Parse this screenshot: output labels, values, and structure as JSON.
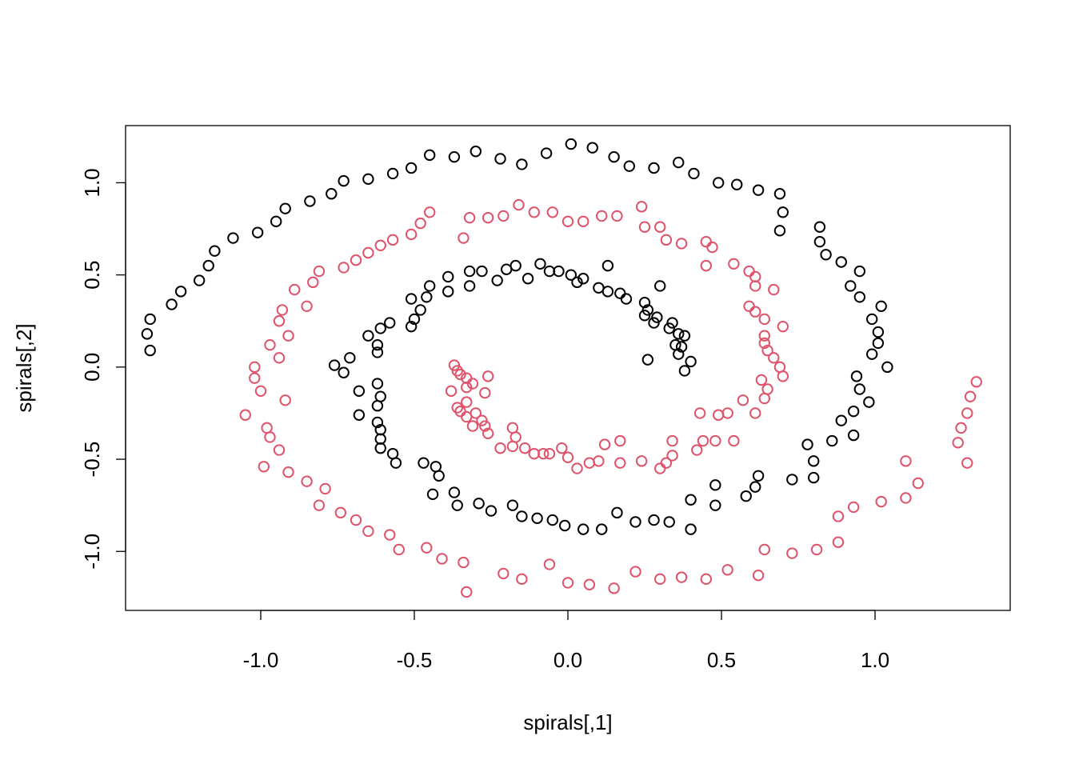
{
  "chart_data": {
    "type": "scatter",
    "xlabel": "spirals[,1]",
    "ylabel": "spirals[,2]",
    "xlim": [
      -1.44,
      1.44
    ],
    "ylim": [
      -1.32,
      1.31
    ],
    "xticks": [
      -1.0,
      -0.5,
      0.0,
      0.5,
      1.0
    ],
    "xtick_labels": [
      "-1.0",
      "-0.5",
      "0.0",
      "0.5",
      "1.0"
    ],
    "yticks": [
      -1.0,
      -0.5,
      0.0,
      0.5,
      1.0
    ],
    "ytick_labels": [
      "-1.0",
      "-0.5",
      "0.0",
      "0.5",
      "1.0"
    ],
    "grid": false,
    "marker": "open-circle",
    "series": [
      {
        "color": "#000000",
        "points": [
          [
            -1.36,
            0.09
          ],
          [
            -1.37,
            0.18
          ],
          [
            -1.36,
            0.26
          ],
          [
            -1.29,
            0.34
          ],
          [
            -1.26,
            0.41
          ],
          [
            -1.2,
            0.47
          ],
          [
            -1.17,
            0.55
          ],
          [
            -1.15,
            0.63
          ],
          [
            -1.09,
            0.7
          ],
          [
            -1.01,
            0.73
          ],
          [
            -0.95,
            0.79
          ],
          [
            -0.92,
            0.86
          ],
          [
            -0.84,
            0.9
          ],
          [
            -0.77,
            0.94
          ],
          [
            -0.73,
            1.01
          ],
          [
            -0.65,
            1.02
          ],
          [
            -0.57,
            1.05
          ],
          [
            -0.51,
            1.08
          ],
          [
            -0.45,
            1.15
          ],
          [
            -0.37,
            1.14
          ],
          [
            -0.3,
            1.17
          ],
          [
            -0.22,
            1.13
          ],
          [
            -0.15,
            1.1
          ],
          [
            -0.07,
            1.16
          ],
          [
            0.01,
            1.21
          ],
          [
            0.08,
            1.19
          ],
          [
            0.15,
            1.14
          ],
          [
            0.2,
            1.09
          ],
          [
            0.28,
            1.08
          ],
          [
            0.36,
            1.11
          ],
          [
            0.41,
            1.05
          ],
          [
            0.49,
            1.0
          ],
          [
            0.55,
            0.99
          ],
          [
            0.62,
            0.96
          ],
          [
            0.69,
            0.94
          ],
          [
            0.7,
            0.84
          ],
          [
            0.69,
            0.74
          ],
          [
            0.82,
            0.76
          ],
          [
            0.82,
            0.68
          ],
          [
            0.84,
            0.61
          ],
          [
            0.89,
            0.57
          ],
          [
            0.95,
            0.52
          ],
          [
            0.92,
            0.44
          ],
          [
            0.95,
            0.38
          ],
          [
            1.02,
            0.33
          ],
          [
            0.99,
            0.26
          ],
          [
            1.01,
            0.19
          ],
          [
            1.01,
            0.13
          ],
          [
            0.99,
            0.07
          ],
          [
            1.04,
            0.0
          ],
          [
            0.94,
            -0.05
          ],
          [
            0.95,
            -0.12
          ],
          [
            0.98,
            -0.19
          ],
          [
            0.93,
            -0.24
          ],
          [
            0.89,
            -0.29
          ],
          [
            0.93,
            -0.37
          ],
          [
            0.86,
            -0.4
          ],
          [
            0.78,
            -0.42
          ],
          [
            0.8,
            -0.51
          ],
          [
            0.8,
            -0.6
          ],
          [
            0.73,
            -0.61
          ],
          [
            0.62,
            -0.59
          ],
          [
            0.61,
            -0.65
          ],
          [
            0.58,
            -0.7
          ],
          [
            0.48,
            -0.64
          ],
          [
            0.48,
            -0.75
          ],
          [
            0.4,
            -0.72
          ],
          [
            0.4,
            -0.88
          ],
          [
            0.33,
            -0.84
          ],
          [
            0.28,
            -0.83
          ],
          [
            0.22,
            -0.84
          ],
          [
            0.16,
            -0.79
          ],
          [
            0.11,
            -0.88
          ],
          [
            0.05,
            -0.88
          ],
          [
            -0.01,
            -0.86
          ],
          [
            -0.05,
            -0.83
          ],
          [
            -0.1,
            -0.82
          ],
          [
            -0.15,
            -0.81
          ],
          [
            -0.18,
            -0.75
          ],
          [
            -0.25,
            -0.78
          ],
          [
            -0.29,
            -0.74
          ],
          [
            -0.36,
            -0.75
          ],
          [
            -0.37,
            -0.68
          ],
          [
            -0.44,
            -0.69
          ],
          [
            -0.42,
            -0.59
          ],
          [
            -0.43,
            -0.54
          ],
          [
            -0.47,
            -0.52
          ],
          [
            -0.56,
            -0.52
          ],
          [
            -0.57,
            -0.47
          ],
          [
            -0.61,
            -0.44
          ],
          [
            -0.61,
            -0.39
          ],
          [
            -0.61,
            -0.34
          ],
          [
            -0.62,
            -0.3
          ],
          [
            -0.62,
            -0.21
          ],
          [
            -0.61,
            -0.16
          ],
          [
            -0.62,
            -0.09
          ],
          [
            -0.68,
            -0.26
          ],
          [
            -0.68,
            -0.13
          ],
          [
            -0.73,
            -0.03
          ],
          [
            -0.76,
            0.01
          ],
          [
            -0.71,
            0.05
          ],
          [
            -0.62,
            0.08
          ],
          [
            -0.62,
            0.12
          ],
          [
            -0.65,
            0.17
          ],
          [
            -0.61,
            0.21
          ],
          [
            -0.58,
            0.24
          ],
          [
            -0.51,
            0.22
          ],
          [
            -0.5,
            0.26
          ],
          [
            -0.48,
            0.31
          ],
          [
            -0.46,
            0.38
          ],
          [
            -0.51,
            0.37
          ],
          [
            -0.45,
            0.44
          ],
          [
            -0.39,
            0.41
          ],
          [
            -0.39,
            0.49
          ],
          [
            -0.32,
            0.44
          ],
          [
            -0.32,
            0.52
          ],
          [
            -0.28,
            0.52
          ],
          [
            -0.23,
            0.47
          ],
          [
            -0.2,
            0.53
          ],
          [
            -0.17,
            0.55
          ],
          [
            -0.13,
            0.48
          ],
          [
            -0.09,
            0.56
          ],
          [
            -0.06,
            0.52
          ],
          [
            -0.03,
            0.52
          ],
          [
            0.01,
            0.5
          ],
          [
            0.03,
            0.46
          ],
          [
            0.05,
            0.48
          ],
          [
            0.1,
            0.43
          ],
          [
            0.13,
            0.41
          ],
          [
            0.13,
            0.55
          ],
          [
            0.17,
            0.4
          ],
          [
            0.19,
            0.37
          ],
          [
            0.3,
            0.44
          ],
          [
            0.25,
            0.35
          ],
          [
            0.26,
            0.31
          ],
          [
            0.25,
            0.28
          ],
          [
            0.28,
            0.24
          ],
          [
            0.29,
            0.27
          ],
          [
            0.33,
            0.21
          ],
          [
            0.34,
            0.24
          ],
          [
            0.36,
            0.18
          ],
          [
            0.35,
            0.12
          ],
          [
            0.38,
            0.17
          ],
          [
            0.36,
            0.07
          ],
          [
            0.37,
            0.11
          ],
          [
            0.4,
            0.03
          ],
          [
            0.38,
            -0.02
          ],
          [
            0.26,
            0.04
          ]
        ]
      },
      {
        "color": "#df536b",
        "points": [
          [
            1.33,
            -0.08
          ],
          [
            1.31,
            -0.16
          ],
          [
            1.3,
            -0.25
          ],
          [
            1.28,
            -0.33
          ],
          [
            1.27,
            -0.41
          ],
          [
            1.3,
            -0.52
          ],
          [
            1.14,
            -0.63
          ],
          [
            1.1,
            -0.51
          ],
          [
            1.1,
            -0.71
          ],
          [
            1.02,
            -0.73
          ],
          [
            0.93,
            -0.76
          ],
          [
            0.88,
            -0.95
          ],
          [
            0.88,
            -0.81
          ],
          [
            0.81,
            -0.99
          ],
          [
            0.73,
            -1.01
          ],
          [
            0.64,
            -0.99
          ],
          [
            0.62,
            -1.13
          ],
          [
            0.52,
            -1.1
          ],
          [
            0.45,
            -1.15
          ],
          [
            0.37,
            -1.14
          ],
          [
            0.3,
            -1.15
          ],
          [
            0.22,
            -1.11
          ],
          [
            0.15,
            -1.2
          ],
          [
            0.07,
            -1.18
          ],
          [
            0.0,
            -1.17
          ],
          [
            -0.06,
            -1.07
          ],
          [
            -0.15,
            -1.15
          ],
          [
            -0.21,
            -1.12
          ],
          [
            -0.33,
            -1.22
          ],
          [
            -0.34,
            -1.06
          ],
          [
            -0.41,
            -1.04
          ],
          [
            -0.46,
            -0.98
          ],
          [
            -0.55,
            -0.99
          ],
          [
            -0.58,
            -0.91
          ],
          [
            -0.65,
            -0.89
          ],
          [
            -0.69,
            -0.83
          ],
          [
            -0.74,
            -0.79
          ],
          [
            -0.79,
            -0.66
          ],
          [
            -0.81,
            -0.75
          ],
          [
            -0.85,
            -0.62
          ],
          [
            -0.91,
            -0.57
          ],
          [
            -0.99,
            -0.54
          ],
          [
            -0.94,
            -0.45
          ],
          [
            -0.97,
            -0.38
          ],
          [
            -0.98,
            -0.33
          ],
          [
            -1.05,
            -0.26
          ],
          [
            -0.92,
            -0.18
          ],
          [
            -1.0,
            -0.13
          ],
          [
            -1.02,
            -0.06
          ],
          [
            -1.02,
            0.0
          ],
          [
            -0.94,
            0.05
          ],
          [
            -0.97,
            0.12
          ],
          [
            -0.91,
            0.17
          ],
          [
            -0.94,
            0.25
          ],
          [
            -0.93,
            0.31
          ],
          [
            -0.85,
            0.33
          ],
          [
            -0.89,
            0.42
          ],
          [
            -0.83,
            0.46
          ],
          [
            -0.81,
            0.52
          ],
          [
            -0.73,
            0.54
          ],
          [
            -0.69,
            0.58
          ],
          [
            -0.65,
            0.62
          ],
          [
            -0.61,
            0.66
          ],
          [
            -0.57,
            0.69
          ],
          [
            -0.51,
            0.72
          ],
          [
            -0.48,
            0.78
          ],
          [
            -0.45,
            0.84
          ],
          [
            -0.34,
            0.7
          ],
          [
            -0.32,
            0.81
          ],
          [
            -0.26,
            0.81
          ],
          [
            -0.21,
            0.82
          ],
          [
            -0.16,
            0.88
          ],
          [
            -0.11,
            0.84
          ],
          [
            -0.05,
            0.84
          ],
          [
            0.0,
            0.79
          ],
          [
            0.05,
            0.79
          ],
          [
            0.11,
            0.82
          ],
          [
            0.16,
            0.82
          ],
          [
            0.24,
            0.87
          ],
          [
            0.25,
            0.76
          ],
          [
            0.3,
            0.76
          ],
          [
            0.32,
            0.69
          ],
          [
            0.37,
            0.67
          ],
          [
            0.45,
            0.68
          ],
          [
            0.47,
            0.65
          ],
          [
            0.54,
            0.56
          ],
          [
            0.59,
            0.52
          ],
          [
            0.45,
            0.55
          ],
          [
            0.61,
            0.49
          ],
          [
            0.61,
            0.44
          ],
          [
            0.67,
            0.42
          ],
          [
            0.59,
            0.33
          ],
          [
            0.61,
            0.3
          ],
          [
            0.64,
            0.26
          ],
          [
            0.7,
            0.22
          ],
          [
            0.64,
            0.17
          ],
          [
            0.64,
            0.13
          ],
          [
            0.65,
            0.09
          ],
          [
            0.67,
            0.05
          ],
          [
            0.69,
            0.0
          ],
          [
            0.7,
            -0.05
          ],
          [
            0.63,
            -0.07
          ],
          [
            0.65,
            -0.12
          ],
          [
            0.64,
            -0.17
          ],
          [
            0.57,
            -0.18
          ],
          [
            0.61,
            -0.25
          ],
          [
            0.52,
            -0.25
          ],
          [
            0.49,
            -0.26
          ],
          [
            0.43,
            -0.25
          ],
          [
            0.54,
            -0.4
          ],
          [
            0.48,
            -0.4
          ],
          [
            0.44,
            -0.4
          ],
          [
            0.42,
            -0.45
          ],
          [
            0.34,
            -0.4
          ],
          [
            0.34,
            -0.48
          ],
          [
            0.32,
            -0.52
          ],
          [
            0.3,
            -0.55
          ],
          [
            0.24,
            -0.51
          ],
          [
            0.17,
            -0.4
          ],
          [
            0.17,
            -0.52
          ],
          [
            0.12,
            -0.42
          ],
          [
            0.1,
            -0.51
          ],
          [
            0.07,
            -0.52
          ],
          [
            0.03,
            -0.55
          ],
          [
            0.0,
            -0.49
          ],
          [
            -0.02,
            -0.44
          ],
          [
            -0.06,
            -0.47
          ],
          [
            -0.08,
            -0.47
          ],
          [
            -0.11,
            -0.47
          ],
          [
            -0.14,
            -0.44
          ],
          [
            -0.18,
            -0.43
          ],
          [
            -0.17,
            -0.38
          ],
          [
            -0.18,
            -0.33
          ],
          [
            -0.22,
            -0.44
          ],
          [
            -0.26,
            -0.36
          ],
          [
            -0.27,
            -0.32
          ],
          [
            -0.28,
            -0.29
          ],
          [
            -0.3,
            -0.25
          ],
          [
            -0.31,
            -0.32
          ],
          [
            -0.33,
            -0.27
          ],
          [
            -0.35,
            -0.24
          ],
          [
            -0.36,
            -0.22
          ],
          [
            -0.38,
            -0.13
          ],
          [
            -0.33,
            -0.19
          ],
          [
            -0.33,
            -0.11
          ],
          [
            -0.31,
            -0.09
          ],
          [
            -0.33,
            -0.06
          ],
          [
            -0.35,
            -0.04
          ],
          [
            -0.36,
            -0.02
          ],
          [
            -0.37,
            0.01
          ],
          [
            -0.27,
            -0.14
          ],
          [
            -0.26,
            -0.05
          ]
        ]
      }
    ]
  }
}
